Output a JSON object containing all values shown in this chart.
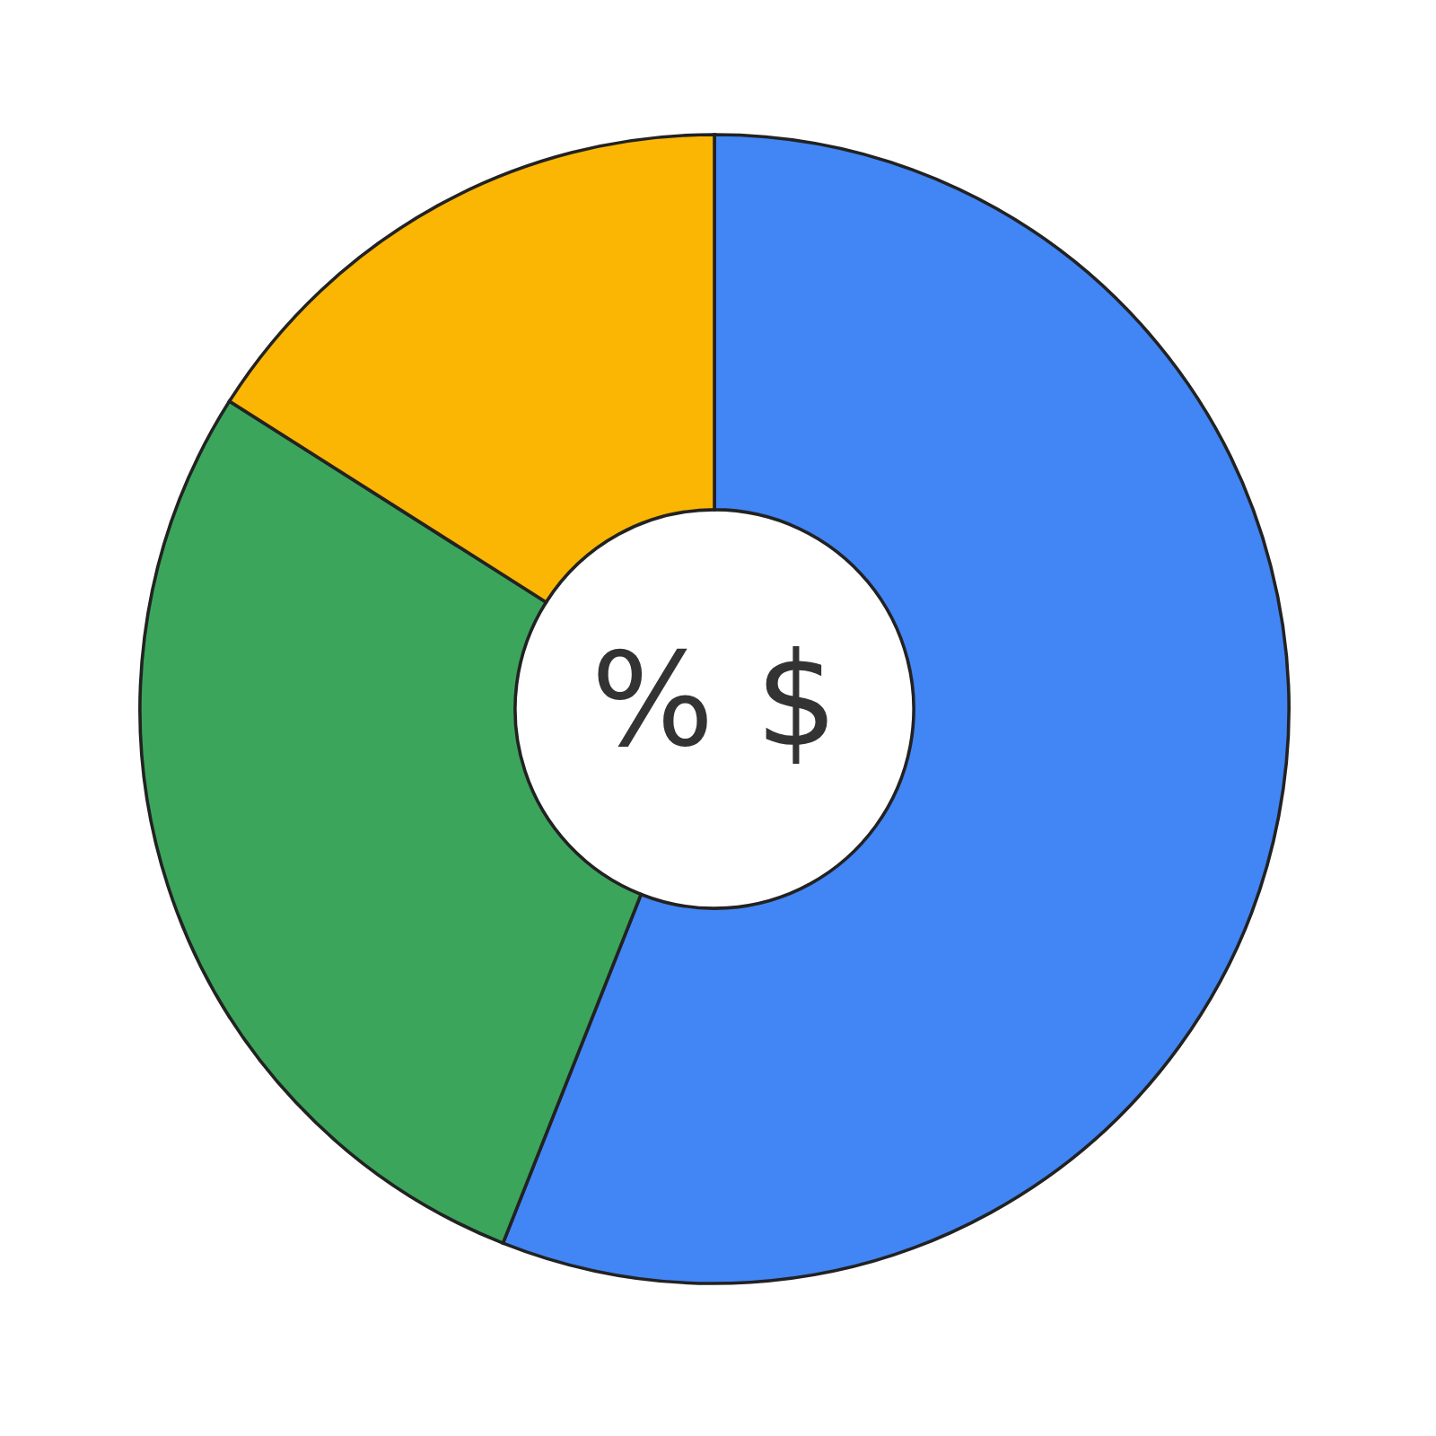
{
  "chart_data": {
    "type": "donut",
    "categories": [
      null,
      null,
      null
    ],
    "values": [
      56,
      28,
      16
    ],
    "colors": [
      "#4285f4",
      "#3ca55c",
      "#fbb604"
    ],
    "annotations": [
      "% $"
    ]
  }
}
